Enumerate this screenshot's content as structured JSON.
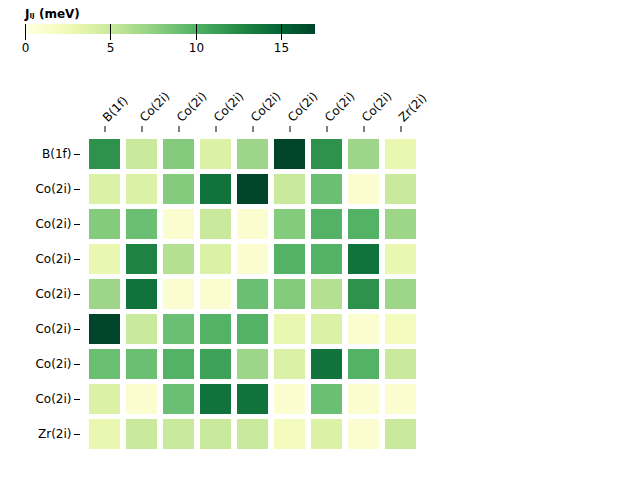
{
  "chart_data": {
    "type": "heatmap",
    "categories": [
      "B(1f)",
      "Co(2i)",
      "Co(2i)",
      "Co(2i)",
      "Co(2i)",
      "Co(2i)",
      "Co(2i)",
      "Co(2i)",
      "Zr(2i)"
    ],
    "values": [
      [
        12,
        5,
        8,
        4,
        7,
        17,
        12,
        7,
        3
      ],
      [
        4,
        4,
        8,
        14,
        17,
        5,
        9,
        1,
        5
      ],
      [
        8,
        9,
        1,
        5,
        1,
        8,
        10,
        10,
        7
      ],
      [
        3,
        13,
        6,
        4,
        1,
        10,
        10,
        14,
        3
      ],
      [
        7,
        14,
        1,
        1,
        9,
        8,
        6,
        12,
        7
      ],
      [
        17,
        5,
        9,
        10,
        10,
        3,
        4,
        1,
        2
      ],
      [
        9,
        9,
        10,
        11,
        7,
        4,
        14,
        10,
        5
      ],
      [
        4,
        1,
        9,
        14,
        14,
        1,
        9,
        1,
        1
      ],
      [
        3,
        5,
        5,
        5,
        5,
        2,
        4,
        1,
        5
      ]
    ],
    "color": "YlGn",
    "colorbar_label": "Jᵢⱼ (meV)",
    "colorbar_range": [
      0,
      17
    ],
    "colorbar_ticks": [
      0,
      5,
      10,
      15
    ]
  }
}
